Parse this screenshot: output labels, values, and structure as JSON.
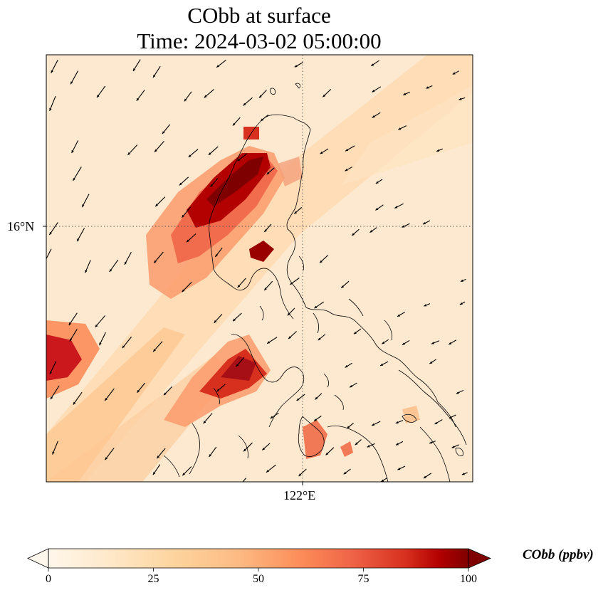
{
  "title": {
    "line1": "CObb at surface",
    "line2": "Time: 2024-03-02 05:00:00"
  },
  "axes": {
    "lat_tick": "16°N",
    "lon_tick": "122°E"
  },
  "colorbar": {
    "label": "CObb (ppbv)",
    "ticks": [
      "0",
      "25",
      "50",
      "75",
      "100"
    ],
    "range": [
      0,
      100
    ],
    "colormap": "OrRd",
    "extend": "both"
  },
  "colors": {
    "low": "#fff7ec",
    "mid": "#fdbb84",
    "high": "#7f0000"
  },
  "map": {
    "gridlines": "dotted",
    "coastlines": true,
    "wind_vectors": true
  }
}
